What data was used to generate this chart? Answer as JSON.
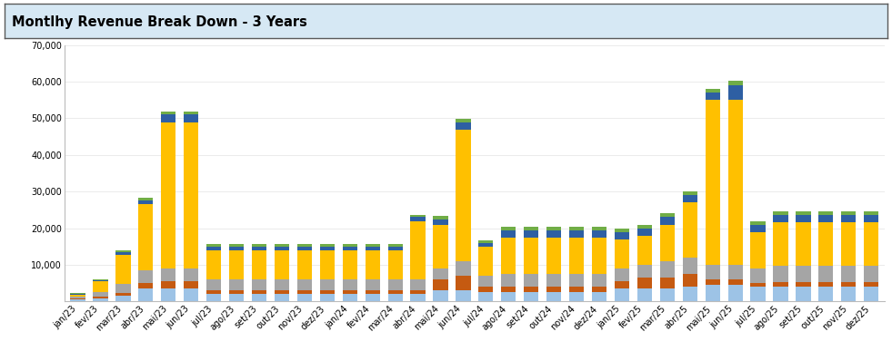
{
  "title": "Montlhy Revenue Break Down - 3 Years",
  "title_bg": "#d6e8f4",
  "bg_color": "#ffffff",
  "border_color": "#5a5a5a",
  "categories": [
    "jan/23",
    "fev/23",
    "mar/23",
    "abr/23",
    "mai/23",
    "jun/23",
    "jul/23",
    "ago/23",
    "set/23",
    "out/23",
    "nov/23",
    "dez/23",
    "jan/24",
    "fev/24",
    "mar/24",
    "abr/24",
    "mai/24",
    "jun/24",
    "jul/24",
    "ago/24",
    "set/24",
    "out/24",
    "nov/24",
    "dez/24",
    "jan/25",
    "fev/25",
    "mar/25",
    "abr/25",
    "mai/25",
    "jun/25",
    "jul/25",
    "ago/25",
    "set/25",
    "out/25",
    "nov/25",
    "dez/25"
  ],
  "series": {
    "Self Service": [
      500,
      800,
      1500,
      3500,
      3500,
      3500,
      2000,
      2000,
      2000,
      2000,
      2000,
      2000,
      2000,
      2000,
      2000,
      2000,
      3000,
      3000,
      2500,
      2500,
      2500,
      2500,
      2500,
      2500,
      3500,
      3500,
      3500,
      4000,
      4500,
      4500,
      4000,
      4000,
      4000,
      4000,
      4000,
      4000
    ],
    "Automated": [
      300,
      500,
      800,
      1500,
      2000,
      2000,
      1000,
      1000,
      1000,
      1000,
      1000,
      1000,
      1000,
      1000,
      1000,
      1000,
      3000,
      4000,
      1500,
      1500,
      1500,
      1500,
      1500,
      1500,
      2000,
      3000,
      3000,
      3500,
      1500,
      1500,
      1000,
      1200,
      1200,
      1200,
      1200,
      1200
    ],
    "Touchless": [
      500,
      1200,
      2500,
      3500,
      3500,
      3500,
      3000,
      3000,
      3000,
      3000,
      3000,
      3000,
      3000,
      3000,
      3000,
      3000,
      3000,
      4000,
      3000,
      3500,
      3500,
      3500,
      3500,
      3500,
      3500,
      3500,
      4500,
      4500,
      4000,
      4000,
      4000,
      4500,
      4500,
      4500,
      4500,
      4500
    ],
    "Full Service": [
      600,
      3000,
      8000,
      18000,
      40000,
      40000,
      8000,
      8000,
      8000,
      8000,
      8000,
      8000,
      8000,
      8000,
      8000,
      16000,
      12000,
      36000,
      8000,
      10000,
      10000,
      10000,
      10000,
      10000,
      8000,
      8000,
      10000,
      15000,
      45000,
      45000,
      10000,
      12000,
      12000,
      12000,
      12000,
      12000
    ],
    "Vending Machine Revenue": [
      200,
      300,
      600,
      1000,
      2000,
      2000,
      1000,
      1000,
      1000,
      1000,
      1000,
      1000,
      1000,
      1000,
      1000,
      1000,
      1500,
      2000,
      1000,
      2000,
      2000,
      2000,
      2000,
      2000,
      2000,
      2000,
      2000,
      2000,
      2000,
      4000,
      2000,
      2000,
      2000,
      2000,
      2000,
      2000
    ],
    "Other Add-on Revenues": [
      200,
      300,
      600,
      800,
      800,
      800,
      600,
      600,
      600,
      600,
      600,
      600,
      600,
      600,
      600,
      600,
      800,
      800,
      600,
      800,
      800,
      800,
      800,
      800,
      800,
      800,
      1000,
      1000,
      1000,
      1200,
      800,
      800,
      800,
      800,
      800,
      800
    ]
  },
  "colors": {
    "Self Service": "#9dc3e6",
    "Automated": "#c55a11",
    "Touchless": "#a5a5a5",
    "Full Service": "#ffc000",
    "Vending Machine Revenue": "#2e5fa3",
    "Other Add-on Revenues": "#70ad47"
  },
  "ylim": [
    0,
    70000
  ],
  "yticks": [
    0,
    10000,
    20000,
    30000,
    40000,
    50000,
    60000,
    70000
  ],
  "ytick_labels": [
    "",
    "10,000",
    "20,000",
    "30,000",
    "40,000",
    "50,000",
    "60,000",
    "70,000"
  ],
  "tick_fontsize": 7,
  "legend_fontsize": 7.5,
  "title_fontsize": 10.5
}
